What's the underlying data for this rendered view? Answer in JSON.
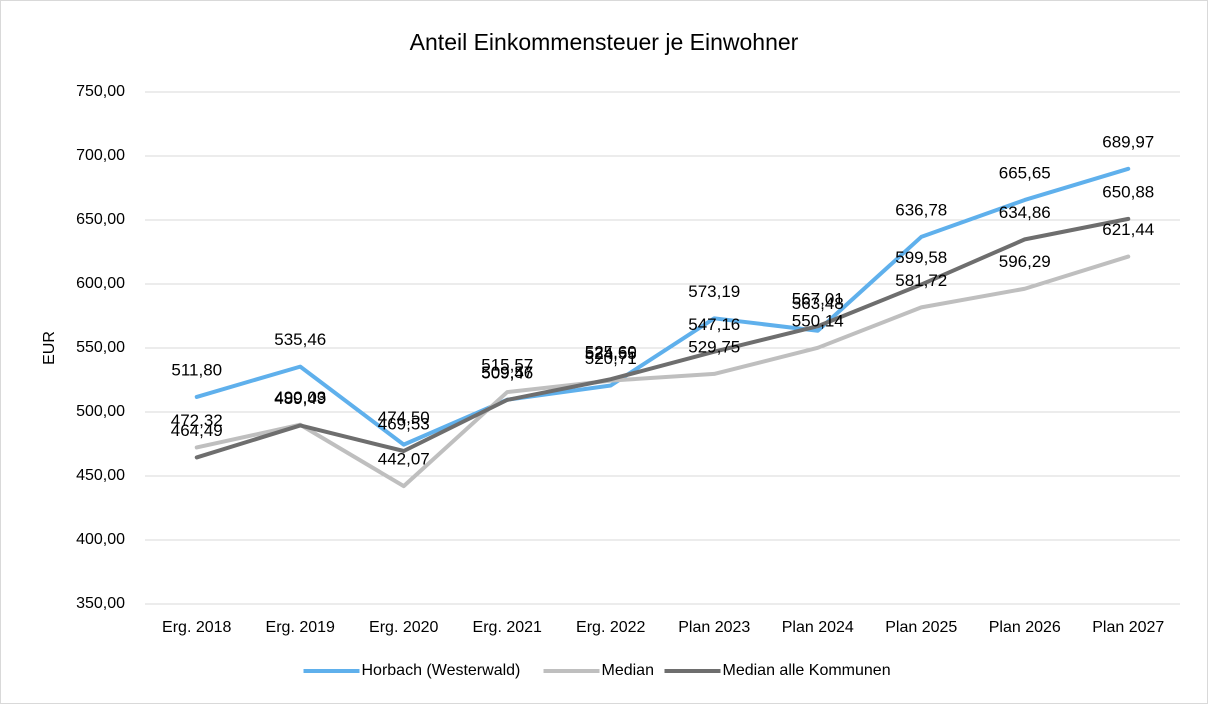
{
  "chart_data": {
    "type": "line",
    "title": "Anteil Einkommensteuer je Einwohner",
    "y_label": "EUR",
    "categories": [
      "Erg. 2018",
      "Erg. 2019",
      "Erg. 2020",
      "Erg. 2021",
      "Erg. 2022",
      "Plan 2023",
      "Plan 2024",
      "Plan 2025",
      "Plan 2026",
      "Plan 2027"
    ],
    "series": [
      {
        "name": "Horbach (Westerwald)",
        "color": "#5fb0ec",
        "values": [
          511.8,
          535.46,
          474.5,
          509.57,
          520.71,
          573.19,
          563.48,
          636.78,
          665.65,
          689.97
        ],
        "value_labels": [
          "511,80",
          "535,46",
          "474,50",
          "509,57",
          "520,71",
          "573,19",
          "563,48",
          "636,78",
          "665,65",
          "689,97"
        ]
      },
      {
        "name": "Median",
        "color": "#bfbfbf",
        "values": [
          472.32,
          490.03,
          442.07,
          515.57,
          524.55,
          529.75,
          550.14,
          581.72,
          596.29,
          621.44
        ],
        "value_labels": [
          "472,32",
          "490,03",
          "442,07",
          "515,57",
          "524,55",
          "529,75",
          "550,14",
          "581,72",
          "596,29",
          "621,44"
        ]
      },
      {
        "name": "Median alle Kommunen",
        "color": "#6e6e6e",
        "values": [
          464.49,
          489.49,
          469.53,
          509.46,
          525.6,
          547.16,
          567.01,
          599.58,
          634.86,
          650.88
        ],
        "value_labels": [
          "464,49",
          "489,49",
          "469,53",
          "509,46",
          "525,60",
          "547,16",
          "567,01",
          "599,58",
          "634,86",
          "650,88"
        ]
      }
    ],
    "ylim": [
      350,
      750
    ],
    "yticks": [
      {
        "value": 350,
        "label": "350,00"
      },
      {
        "value": 400,
        "label": "400,00"
      },
      {
        "value": 450,
        "label": "450,00"
      },
      {
        "value": 500,
        "label": "500,00"
      },
      {
        "value": 550,
        "label": "550,00"
      },
      {
        "value": 600,
        "label": "600,00"
      },
      {
        "value": 650,
        "label": "650,00"
      },
      {
        "value": 700,
        "label": "700,00"
      },
      {
        "value": 750,
        "label": "750,00"
      }
    ],
    "grid": true,
    "legend": "bottom"
  }
}
